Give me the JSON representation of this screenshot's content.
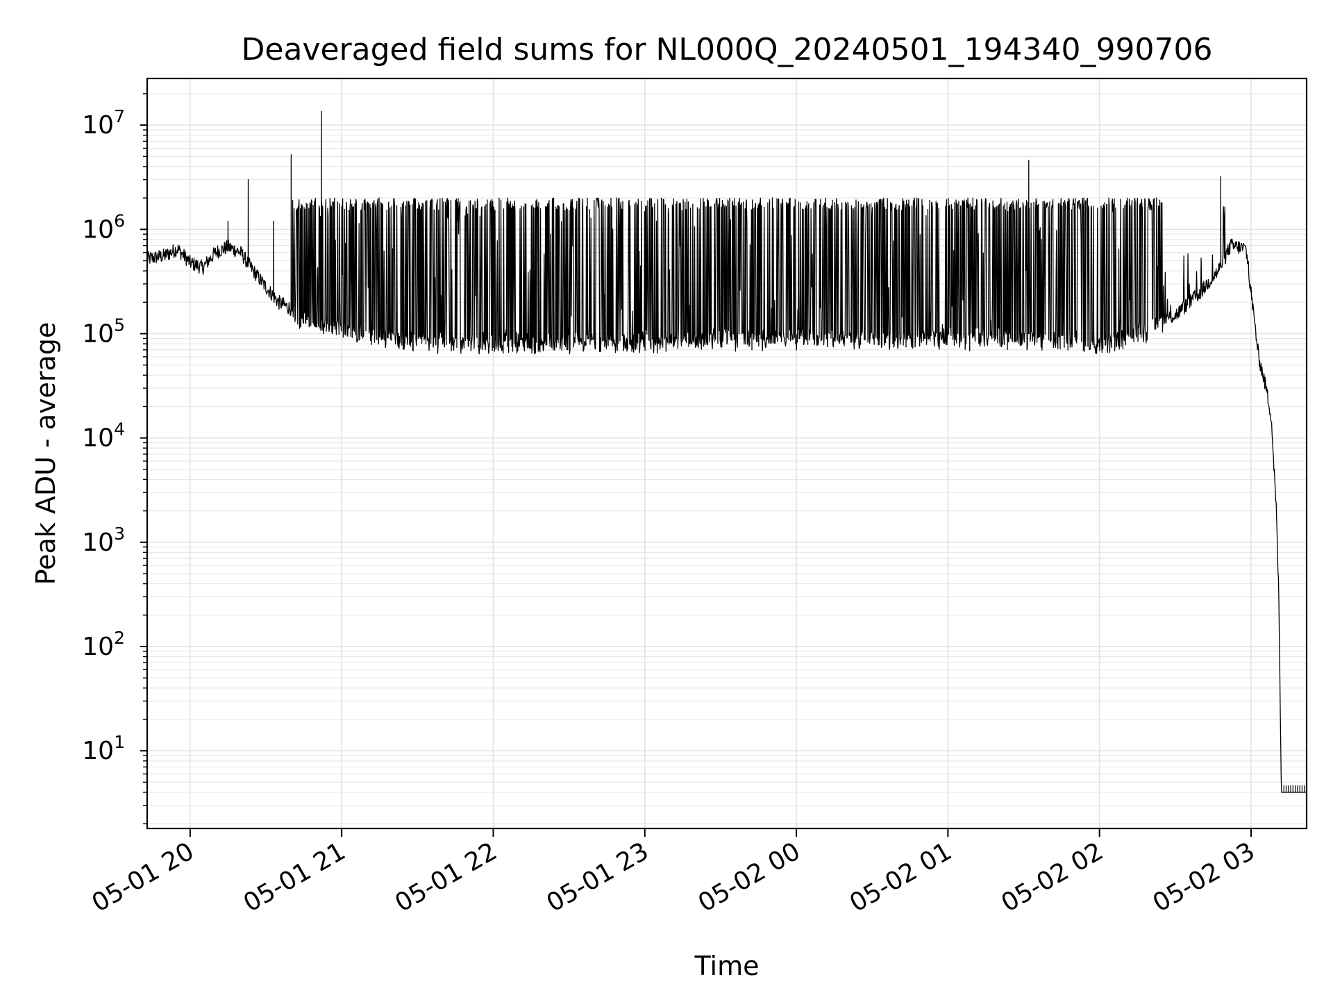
{
  "chart_data": {
    "type": "line",
    "title": "Deaveraged field sums for NL000Q_20240501_194340_990706",
    "xlabel": "Time",
    "ylabel": "Peak ADU - average",
    "yscale": "log",
    "ylim": [
      1.8,
      28000000
    ],
    "xlim": [
      "2024-05-01 19:43",
      "2024-05-02 03:22"
    ],
    "grid": true,
    "x_ticks": [
      "05-01 20",
      "05-01 21",
      "05-01 22",
      "05-01 23",
      "05-02 00",
      "05-02 01",
      "05-02 02",
      "05-02 03"
    ],
    "y_ticks": [
      {
        "base": "10",
        "exp": "1",
        "value": 10
      },
      {
        "base": "10",
        "exp": "2",
        "value": 100
      },
      {
        "base": "10",
        "exp": "3",
        "value": 1000
      },
      {
        "base": "10",
        "exp": "4",
        "value": 10000
      },
      {
        "base": "10",
        "exp": "5",
        "value": 100000
      },
      {
        "base": "10",
        "exp": "6",
        "value": 1000000
      },
      {
        "base": "10",
        "exp": "7",
        "value": 10000000
      }
    ],
    "series": [
      {
        "color": "#000000",
        "baseline": [
          [
            "2024-05-01 19:43",
            520000
          ],
          [
            "2024-05-01 19:50",
            560000
          ],
          [
            "2024-05-01 19:55",
            650000
          ],
          [
            "2024-05-01 20:00",
            480000
          ],
          [
            "2024-05-01 20:05",
            430000
          ],
          [
            "2024-05-01 20:10",
            600000
          ],
          [
            "2024-05-01 20:15",
            680000
          ],
          [
            "2024-05-01 20:20",
            600000
          ],
          [
            "2024-05-01 20:25",
            400000
          ],
          [
            "2024-05-01 20:30",
            280000
          ],
          [
            "2024-05-01 20:35",
            200000
          ],
          [
            "2024-05-01 20:45",
            150000
          ],
          [
            "2024-05-01 21:00",
            120000
          ],
          [
            "2024-05-01 21:30",
            95000
          ],
          [
            "2024-05-01 22:00",
            90000
          ],
          [
            "2024-05-01 23:00",
            95000
          ],
          [
            "2024-05-02 00:00",
            100000
          ],
          [
            "2024-05-02 01:00",
            100000
          ],
          [
            "2024-05-02 01:40",
            100000
          ],
          [
            "2024-05-02 02:00",
            85000
          ],
          [
            "2024-05-02 02:15",
            110000
          ],
          [
            "2024-05-02 02:30",
            150000
          ],
          [
            "2024-05-02 02:40",
            250000
          ],
          [
            "2024-05-02 02:47",
            400000
          ],
          [
            "2024-05-02 02:52",
            700000
          ],
          [
            "2024-05-02 02:58",
            650000
          ],
          [
            "2024-05-02 03:00",
            250000
          ],
          [
            "2024-05-02 03:03",
            60000
          ],
          [
            "2024-05-02 03:06",
            30000
          ],
          [
            "2024-05-02 03:08",
            16000
          ],
          [
            "2024-05-02 03:10",
            2000
          ],
          [
            "2024-05-02 03:11",
            300
          ],
          [
            "2024-05-02 03:12",
            4
          ],
          [
            "2024-05-02 03:22",
            4
          ]
        ],
        "spike_band": {
          "from": "2024-05-01 20:40",
          "to": "2024-05-02 02:25",
          "peak": 1800000,
          "note": "dense alternating spikes between baseline and ~2e6"
        },
        "notable_spikes": [
          [
            "2024-05-01 20:15",
            1200000
          ],
          [
            "2024-05-01 20:23",
            3000000
          ],
          [
            "2024-05-01 20:33",
            1200000
          ],
          [
            "2024-05-01 20:40",
            5200000
          ],
          [
            "2024-05-01 20:47",
            1600000
          ],
          [
            "2024-05-01 20:52",
            13500000
          ],
          [
            "2024-05-02 01:32",
            4600000
          ],
          [
            "2024-05-02 02:48",
            3200000
          ]
        ]
      }
    ]
  }
}
